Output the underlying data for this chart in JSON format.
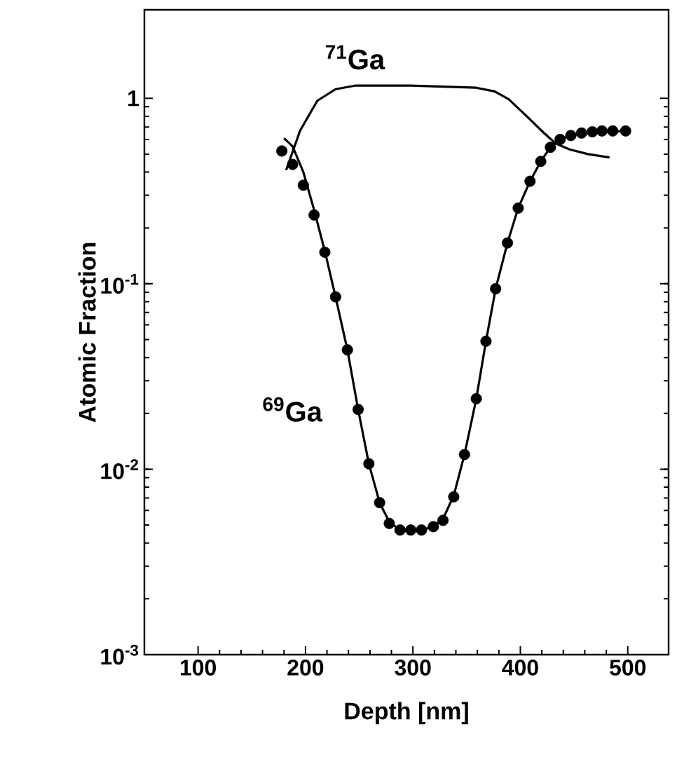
{
  "chart_data": {
    "type": "line",
    "xlabel": "Depth [nm]",
    "ylabel": "Atomic Fraction",
    "log": "y",
    "xlim": [
      50,
      538
    ],
    "ylim": [
      0.001,
      3
    ],
    "xticks": [
      100,
      200,
      300,
      400,
      500
    ],
    "yticks": [
      {
        "value": 0.001,
        "label": "10$^{-3}$"
      },
      {
        "value": 0.01,
        "label": "10$^{-2}$"
      },
      {
        "value": 0.1,
        "label": "10$^{-1}$"
      },
      1
    ],
    "grid": false,
    "legend": false,
    "series": [
      {
        "name": "$^{69}$Ga",
        "color": "#000000",
        "marker": "none",
        "line_style": "solid",
        "x": [
          180,
          188,
          198,
          208,
          218,
          228,
          239,
          249,
          259,
          269,
          278,
          288,
          298,
          308,
          319,
          328,
          338,
          348,
          359,
          368,
          377,
          388,
          398,
          409,
          419,
          428,
          437,
          447,
          460,
          480,
          498
        ],
        "values": [
          0.61,
          0.55,
          0.4,
          0.25,
          0.15,
          0.085,
          0.044,
          0.021,
          0.0107,
          0.0066,
          0.0052,
          0.0047,
          0.0046,
          0.0047,
          0.0049,
          0.0054,
          0.0072,
          0.012,
          0.024,
          0.049,
          0.094,
          0.166,
          0.256,
          0.357,
          0.457,
          0.544,
          0.6,
          0.63,
          0.65,
          0.66,
          0.667
        ]
      },
      {
        "type": "scatter",
        "color": "#000000",
        "marker": "circle",
        "x": [
          178,
          188,
          198,
          208,
          218,
          228,
          239,
          249,
          259,
          269,
          278,
          288,
          298,
          308,
          319,
          328,
          338,
          348,
          359,
          368,
          377,
          388,
          398,
          409,
          419,
          428,
          437,
          447,
          457,
          467,
          476,
          486,
          498
        ],
        "values": [
          0.52,
          0.44,
          0.34,
          0.235,
          0.148,
          0.085,
          0.044,
          0.021,
          0.0107,
          0.0066,
          0.0051,
          0.0047,
          0.0047,
          0.0047,
          0.0049,
          0.0053,
          0.0071,
          0.012,
          0.024,
          0.049,
          0.094,
          0.166,
          0.256,
          0.357,
          0.457,
          0.544,
          0.6,
          0.63,
          0.65,
          0.66,
          0.667,
          0.667,
          0.667
        ]
      },
      {
        "name": "$^{71}$Ga",
        "color": "#000000",
        "marker": "none",
        "line_style": "solid",
        "x": [
          182,
          195,
          211,
          228,
          246,
          298,
          359,
          376,
          389,
          407,
          422,
          433,
          446,
          463,
          483
        ],
        "values": [
          0.41,
          0.67,
          0.97,
          1.12,
          1.17,
          1.17,
          1.14,
          1.09,
          0.99,
          0.79,
          0.65,
          0.57,
          0.53,
          0.5,
          0.48
        ]
      }
    ]
  }
}
